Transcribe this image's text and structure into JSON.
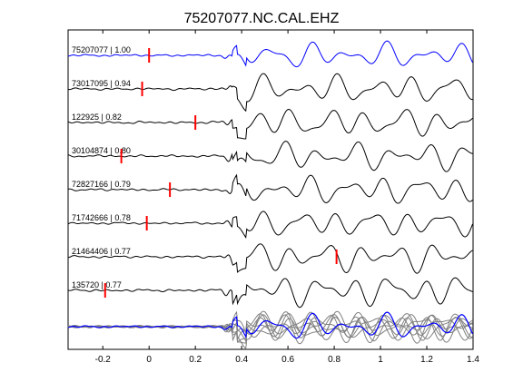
{
  "chart_data": {
    "type": "line",
    "title": "75207077.NC.CAL.EHZ",
    "xlabel": "",
    "ylabel": "",
    "xlim": [
      -0.35,
      1.4
    ],
    "xticks": [
      -0.2,
      0,
      0.2,
      0.4,
      0.6,
      0.8,
      1,
      1.2,
      1.4
    ],
    "xtick_labels": [
      "-0.2",
      "0",
      "0.2",
      "0.4",
      "0.6",
      "0.8",
      "1",
      "1.2",
      "1.4"
    ],
    "grid": false,
    "traces": [
      {
        "label": "75207077 | 1.00",
        "pick": 0.0,
        "color": "#0000ff",
        "seed": 1,
        "amp": 1.0
      },
      {
        "label": "73017095 | 0.94",
        "pick": -0.03,
        "color": "#000000",
        "seed": 2,
        "amp": 1.1
      },
      {
        "label": "122925 | 0.82",
        "pick": 0.2,
        "color": "#000000",
        "seed": 3,
        "amp": 1.15
      },
      {
        "label": "30104874 | 0.80",
        "pick": -0.12,
        "color": "#000000",
        "seed": 4,
        "amp": 1.1
      },
      {
        "label": "72827166 | 0.79",
        "pick": 0.09,
        "color": "#000000",
        "seed": 5,
        "amp": 1.1
      },
      {
        "label": "71742666 | 0.78",
        "pick": -0.01,
        "color": "#000000",
        "seed": 6,
        "amp": 1.05
      },
      {
        "label": "21464406 | 0.77",
        "pick": 0.81,
        "color": "#000000",
        "seed": 7,
        "amp": 1.15
      },
      {
        "label": "135720 | 0.77",
        "pick": -0.19,
        "color": "#000000",
        "seed": 8,
        "amp": 1.2
      }
    ],
    "stack": {
      "color_main": "#0000ff",
      "color_others": "#808080"
    },
    "pick_color": "#ff0000"
  }
}
